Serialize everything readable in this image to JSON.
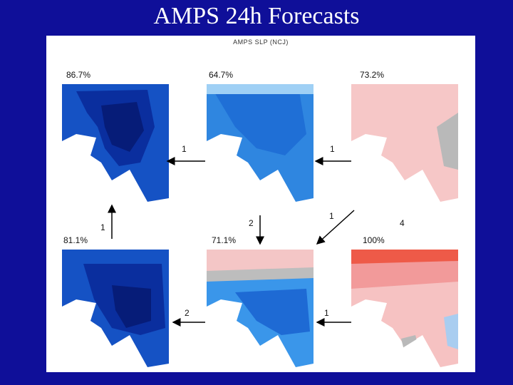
{
  "title": "AMPS 24h Forecasts",
  "subtitle": "AMPS SLP (NCJ)",
  "panels": [
    {
      "pct": "86.7%",
      "color": "#0a2a99"
    },
    {
      "pct": "64.7%",
      "color": "#2f86e0"
    },
    {
      "pct": "73.2%",
      "color": "#f6c7c7"
    },
    {
      "pct": "81.1%",
      "color": "#0c3ab0"
    },
    {
      "pct": "71.1%",
      "color": "#3a96ea"
    },
    {
      "pct": "100%",
      "color": "#f29a9a"
    }
  ],
  "arrow_labels": [
    "1",
    "1",
    "1",
    "2",
    "1",
    "4",
    "2",
    "1"
  ]
}
